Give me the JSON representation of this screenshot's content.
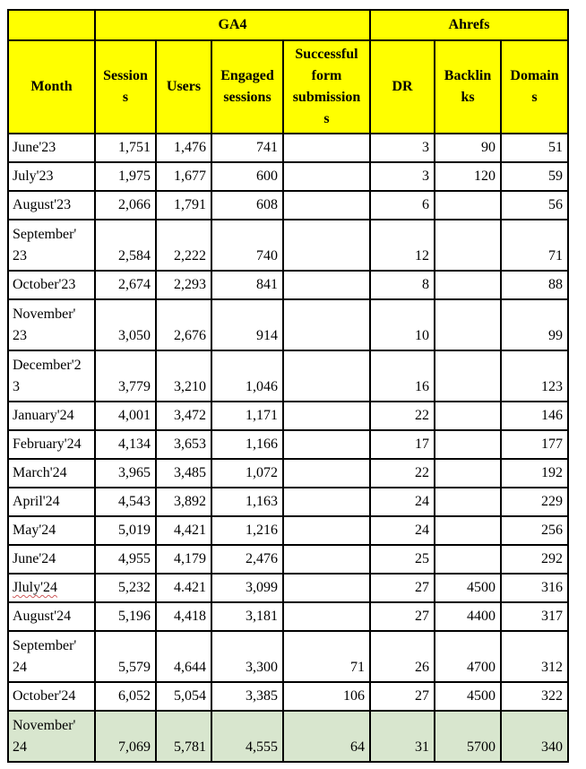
{
  "table": {
    "group_header": {
      "corner": "",
      "ga4": "GA4",
      "ahrefs": "Ahrefs"
    },
    "columns": [
      "Month",
      "Session\ns",
      "Users",
      "Engaged\nsessions",
      "Successful\nform\nsubmission\ns",
      "DR",
      "Backlin\nks",
      "Domain\ns"
    ],
    "rows": [
      {
        "month": "June'23",
        "sessions": "1,751",
        "users": "1,476",
        "engaged": "741",
        "forms": "",
        "dr": "3",
        "backlinks": "90",
        "domains": "51"
      },
      {
        "month": "July'23",
        "sessions": "1,975",
        "users": "1,677",
        "engaged": "600",
        "forms": "",
        "dr": "3",
        "backlinks": "120",
        "domains": "59"
      },
      {
        "month": "August'23",
        "sessions": "2,066",
        "users": "1,791",
        "engaged": "608",
        "forms": "",
        "dr": "6",
        "backlinks": "",
        "domains": "56"
      },
      {
        "month": "September'\n23",
        "sessions": "2,584",
        "users": "2,222",
        "engaged": "740",
        "forms": "",
        "dr": "12",
        "backlinks": "",
        "domains": "71"
      },
      {
        "month": "October'23",
        "sessions": "2,674",
        "users": "2,293",
        "engaged": "841",
        "forms": "",
        "dr": "8",
        "backlinks": "",
        "domains": "88"
      },
      {
        "month": "November'\n23",
        "sessions": "3,050",
        "users": "2,676",
        "engaged": "914",
        "forms": "",
        "dr": "10",
        "backlinks": "",
        "domains": "99"
      },
      {
        "month": "December'2\n3",
        "sessions": "3,779",
        "users": "3,210",
        "engaged": "1,046",
        "forms": "",
        "dr": "16",
        "backlinks": "",
        "domains": "123"
      },
      {
        "month": "January'24",
        "sessions": "4,001",
        "users": "3,472",
        "engaged": "1,171",
        "forms": "",
        "dr": "22",
        "backlinks": "",
        "domains": "146"
      },
      {
        "month": "February'24",
        "sessions": "4,134",
        "users": "3,653",
        "engaged": "1,166",
        "forms": "",
        "dr": "17",
        "backlinks": "",
        "domains": "177"
      },
      {
        "month": "March'24",
        "sessions": "3,965",
        "users": "3,485",
        "engaged": "1,072",
        "forms": "",
        "dr": "22",
        "backlinks": "",
        "domains": "192"
      },
      {
        "month": "April'24",
        "sessions": "4,543",
        "users": "3,892",
        "engaged": "1,163",
        "forms": "",
        "dr": "24",
        "backlinks": "",
        "domains": "229"
      },
      {
        "month": "May'24",
        "sessions": "5,019",
        "users": "4,421",
        "engaged": "1,216",
        "forms": "",
        "dr": "24",
        "backlinks": "",
        "domains": "256"
      },
      {
        "month": "June'24",
        "sessions": "4,955",
        "users": "4,179",
        "engaged": "2,476",
        "forms": "",
        "dr": "25",
        "backlinks": "",
        "domains": "292"
      },
      {
        "month": "Jluly'24",
        "misspelled": true,
        "sessions": "5,232",
        "users": "4.421",
        "engaged": "3,099",
        "forms": "",
        "dr": "27",
        "backlinks": "4500",
        "domains": "316"
      },
      {
        "month": "August'24",
        "sessions": "5,196",
        "users": "4,418",
        "engaged": "3,181",
        "forms": "",
        "dr": "27",
        "backlinks": "4400",
        "domains": "317"
      },
      {
        "month": "September'\n24",
        "sessions": "5,579",
        "users": "4,644",
        "engaged": "3,300",
        "forms": "71",
        "dr": "26",
        "backlinks": "4700",
        "domains": "312"
      },
      {
        "month": "October'24",
        "sessions": "6,052",
        "users": "5,054",
        "engaged": "3,385",
        "forms": "106",
        "dr": "27",
        "backlinks": "4500",
        "domains": "322"
      },
      {
        "month": "November'\n24",
        "highlight": true,
        "sessions": "7,069",
        "users": "5,781",
        "engaged": "4,555",
        "forms": "64",
        "dr": "31",
        "backlinks": "5700",
        "domains": "340"
      }
    ],
    "colors": {
      "header_bg": "#FFFF00",
      "highlight_row_bg": "#D8E6CE",
      "border": "#000000",
      "text": "#000000",
      "spellcheck_underline": "#CE5B5B"
    }
  }
}
